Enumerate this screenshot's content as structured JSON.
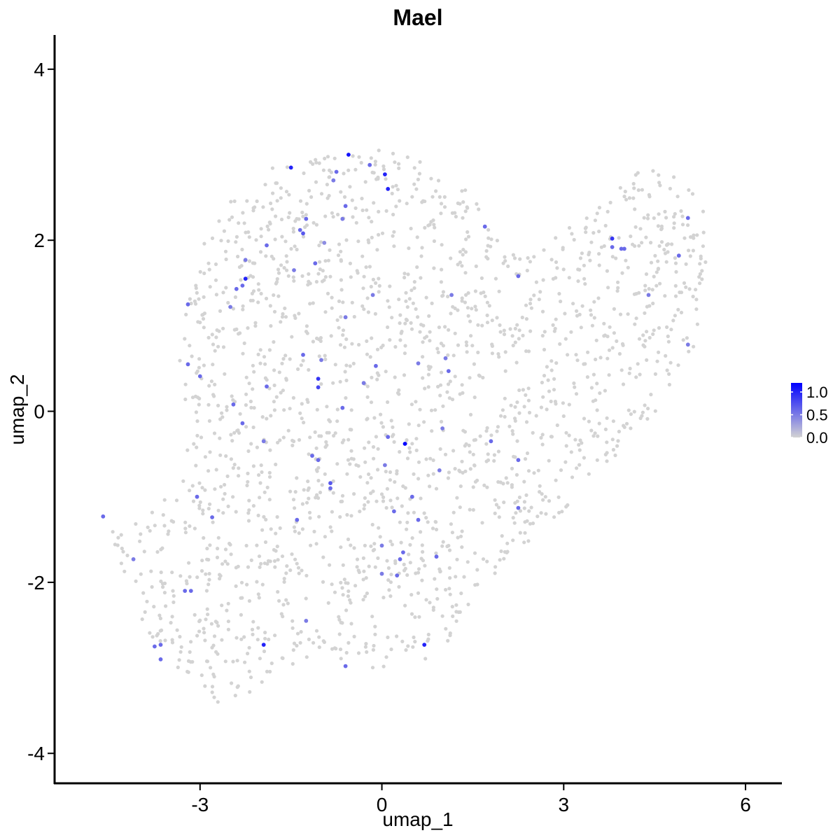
{
  "chart_data": {
    "type": "scatter",
    "title": "Mael",
    "xlabel": "umap_1",
    "ylabel": "umap_2",
    "xlim": [
      -5.4,
      6.6
    ],
    "ylim": [
      -4.35,
      4.4
    ],
    "xticks": [
      -3,
      0,
      3,
      6
    ],
    "xtick_labels": [
      "-3",
      "0",
      "3",
      "6"
    ],
    "yticks": [
      -4,
      -2,
      0,
      2,
      4
    ],
    "ytick_labels": [
      "-4",
      "-2",
      "0",
      "2",
      "4"
    ],
    "grid": false,
    "legend": {
      "position": "right",
      "type": "colorbar",
      "ticks": [
        0.0,
        0.5,
        1.0
      ],
      "tick_labels": [
        "0.0",
        "0.5",
        "1.0"
      ],
      "range": [
        0,
        1.2
      ],
      "low_color": "#d3d3d3",
      "high_color": "#0000ff"
    },
    "background_color": "#d3d3d3",
    "background_region": {
      "note": "approximate outline (data units) of the grey cell cloud with expression 0",
      "polygon": [
        [
          -4.6,
          -1.2
        ],
        [
          -4.2,
          -1.4
        ],
        [
          -3.7,
          -1.1
        ],
        [
          -3.2,
          -0.6
        ],
        [
          -3.4,
          0.2
        ],
        [
          -3.3,
          0.9
        ],
        [
          -3.1,
          1.6
        ],
        [
          -2.9,
          2.2
        ],
        [
          -2.3,
          2.6
        ],
        [
          -1.8,
          2.85
        ],
        [
          -1.0,
          3.0
        ],
        [
          -0.3,
          3.05
        ],
        [
          0.2,
          3.1
        ],
        [
          0.9,
          2.8
        ],
        [
          1.4,
          2.6
        ],
        [
          1.8,
          2.2
        ],
        [
          2.3,
          1.9
        ],
        [
          2.8,
          2.0
        ],
        [
          3.3,
          2.4
        ],
        [
          3.9,
          2.6
        ],
        [
          4.4,
          3.0
        ],
        [
          4.8,
          2.8
        ],
        [
          5.3,
          2.5
        ],
        [
          5.4,
          2.0
        ],
        [
          5.3,
          1.5
        ],
        [
          5.2,
          0.9
        ],
        [
          5.0,
          0.4
        ],
        [
          4.6,
          0.0
        ],
        [
          4.0,
          -0.4
        ],
        [
          3.5,
          -0.8
        ],
        [
          3.1,
          -1.1
        ],
        [
          2.6,
          -1.4
        ],
        [
          2.0,
          -1.8
        ],
        [
          1.4,
          -2.3
        ],
        [
          1.0,
          -2.8
        ],
        [
          0.5,
          -3.0
        ],
        [
          -0.2,
          -3.0
        ],
        [
          -1.0,
          -2.9
        ],
        [
          -1.6,
          -3.0
        ],
        [
          -2.2,
          -3.3
        ],
        [
          -2.7,
          -3.45
        ],
        [
          -3.2,
          -3.1
        ],
        [
          -3.7,
          -2.8
        ],
        [
          -4.1,
          -2.3
        ],
        [
          -4.3,
          -1.8
        ]
      ]
    },
    "points": [
      {
        "x": -0.55,
        "y": 3.0,
        "v": 1.1
      },
      {
        "x": -1.5,
        "y": 2.85,
        "v": 1.0
      },
      {
        "x": -0.2,
        "y": 2.88,
        "v": 0.6
      },
      {
        "x": -0.75,
        "y": 2.8,
        "v": 0.6
      },
      {
        "x": -0.8,
        "y": 2.7,
        "v": 0.5
      },
      {
        "x": 0.05,
        "y": 2.77,
        "v": 1.0
      },
      {
        "x": 0.1,
        "y": 2.6,
        "v": 1.0
      },
      {
        "x": -0.6,
        "y": 2.4,
        "v": 0.6
      },
      {
        "x": -1.25,
        "y": 2.25,
        "v": 0.6
      },
      {
        "x": -0.65,
        "y": 2.25,
        "v": 0.5
      },
      {
        "x": -1.35,
        "y": 2.12,
        "v": 0.6
      },
      {
        "x": -1.3,
        "y": 2.08,
        "v": 0.7
      },
      {
        "x": -0.95,
        "y": 1.97,
        "v": 0.4
      },
      {
        "x": -1.9,
        "y": 1.94,
        "v": 0.6
      },
      {
        "x": 1.7,
        "y": 2.16,
        "v": 0.6
      },
      {
        "x": 3.8,
        "y": 2.02,
        "v": 0.9
      },
      {
        "x": 3.8,
        "y": 1.92,
        "v": 0.6
      },
      {
        "x": 3.95,
        "y": 1.9,
        "v": 0.6
      },
      {
        "x": 4.0,
        "y": 1.9,
        "v": 0.6
      },
      {
        "x": 4.9,
        "y": 1.82,
        "v": 0.6
      },
      {
        "x": 5.05,
        "y": 2.26,
        "v": 0.6
      },
      {
        "x": -2.25,
        "y": 1.77,
        "v": 0.5
      },
      {
        "x": -1.1,
        "y": 1.73,
        "v": 0.6
      },
      {
        "x": -1.45,
        "y": 1.65,
        "v": 0.5
      },
      {
        "x": -2.25,
        "y": 1.55,
        "v": 1.0
      },
      {
        "x": -2.3,
        "y": 1.47,
        "v": 0.6
      },
      {
        "x": -2.4,
        "y": 1.43,
        "v": 0.6
      },
      {
        "x": 2.25,
        "y": 1.58,
        "v": 0.6
      },
      {
        "x": -0.15,
        "y": 1.36,
        "v": 0.5
      },
      {
        "x": 1.15,
        "y": 1.36,
        "v": 0.5
      },
      {
        "x": 4.4,
        "y": 1.36,
        "v": 0.5
      },
      {
        "x": -3.2,
        "y": 1.25,
        "v": 0.6
      },
      {
        "x": -2.5,
        "y": 1.22,
        "v": 0.5
      },
      {
        "x": -0.6,
        "y": 1.1,
        "v": 0.5
      },
      {
        "x": 5.05,
        "y": 0.78,
        "v": 0.5
      },
      {
        "x": -1.3,
        "y": 0.66,
        "v": 0.6
      },
      {
        "x": -1.0,
        "y": 0.6,
        "v": 0.5
      },
      {
        "x": 1.05,
        "y": 0.62,
        "v": 0.5
      },
      {
        "x": -3.2,
        "y": 0.55,
        "v": 0.6
      },
      {
        "x": 0.6,
        "y": 0.56,
        "v": 0.5
      },
      {
        "x": -0.1,
        "y": 0.53,
        "v": 0.6
      },
      {
        "x": 1.1,
        "y": 0.47,
        "v": 0.6
      },
      {
        "x": -3.0,
        "y": 0.41,
        "v": 0.6
      },
      {
        "x": -1.05,
        "y": 0.38,
        "v": 0.9
      },
      {
        "x": -0.3,
        "y": 0.33,
        "v": 0.5
      },
      {
        "x": -1.9,
        "y": 0.29,
        "v": 0.6
      },
      {
        "x": -1.05,
        "y": 0.28,
        "v": 0.8
      },
      {
        "x": -2.45,
        "y": 0.08,
        "v": 0.6
      },
      {
        "x": -0.65,
        "y": 0.04,
        "v": 0.6
      },
      {
        "x": -2.3,
        "y": -0.14,
        "v": 0.6
      },
      {
        "x": 1.0,
        "y": -0.2,
        "v": 0.5
      },
      {
        "x": 0.1,
        "y": -0.3,
        "v": 0.6
      },
      {
        "x": 0.38,
        "y": -0.38,
        "v": 1.2
      },
      {
        "x": 1.8,
        "y": -0.35,
        "v": 0.6
      },
      {
        "x": -1.95,
        "y": -0.35,
        "v": 0.5
      },
      {
        "x": -1.15,
        "y": -0.52,
        "v": 0.6
      },
      {
        "x": -1.05,
        "y": -0.57,
        "v": 0.6
      },
      {
        "x": 2.25,
        "y": -0.57,
        "v": 0.6
      },
      {
        "x": 0.05,
        "y": -0.63,
        "v": 0.5
      },
      {
        "x": 0.95,
        "y": -0.69,
        "v": 0.5
      },
      {
        "x": -0.85,
        "y": -0.84,
        "v": 0.7
      },
      {
        "x": -0.85,
        "y": -0.9,
        "v": 0.6
      },
      {
        "x": -3.05,
        "y": -1.0,
        "v": 0.6
      },
      {
        "x": 0.5,
        "y": -1.0,
        "v": 0.6
      },
      {
        "x": 2.25,
        "y": -1.13,
        "v": 0.6
      },
      {
        "x": 0.2,
        "y": -1.17,
        "v": 0.6
      },
      {
        "x": -2.8,
        "y": -1.24,
        "v": 0.6
      },
      {
        "x": -1.4,
        "y": -1.27,
        "v": 0.6
      },
      {
        "x": 0.6,
        "y": -1.27,
        "v": 0.6
      },
      {
        "x": -4.6,
        "y": -1.23,
        "v": 0.6
      },
      {
        "x": 0.0,
        "y": -1.57,
        "v": 0.5
      },
      {
        "x": 0.35,
        "y": -1.65,
        "v": 0.6
      },
      {
        "x": 0.9,
        "y": -1.7,
        "v": 0.6
      },
      {
        "x": 0.3,
        "y": -1.73,
        "v": 0.6
      },
      {
        "x": -4.1,
        "y": -1.73,
        "v": 0.5
      },
      {
        "x": 0.0,
        "y": -1.9,
        "v": 0.5
      },
      {
        "x": 0.25,
        "y": -1.92,
        "v": 0.6
      },
      {
        "x": -3.25,
        "y": -2.1,
        "v": 0.6
      },
      {
        "x": -3.15,
        "y": -2.1,
        "v": 0.6
      },
      {
        "x": -1.25,
        "y": -2.45,
        "v": 0.5
      },
      {
        "x": -1.95,
        "y": -2.73,
        "v": 1.0
      },
      {
        "x": -3.65,
        "y": -2.73,
        "v": 0.6
      },
      {
        "x": -3.75,
        "y": -2.75,
        "v": 0.6
      },
      {
        "x": 0.7,
        "y": -2.73,
        "v": 1.0
      },
      {
        "x": -3.65,
        "y": -2.9,
        "v": 0.6
      },
      {
        "x": -0.6,
        "y": -2.98,
        "v": 0.6
      }
    ]
  }
}
